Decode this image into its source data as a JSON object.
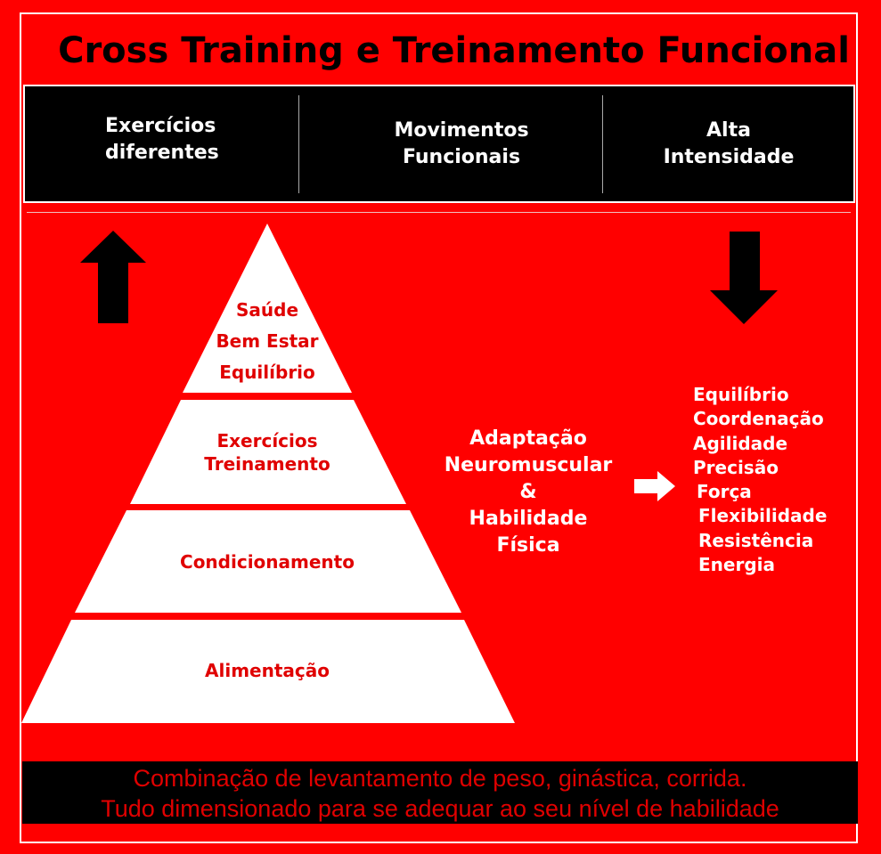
{
  "title": "Cross Training e Treinamento Funcional",
  "header": {
    "items": [
      {
        "line1": "Exercícios",
        "line2": "diferentes"
      },
      {
        "line1": "Movimentos",
        "line2": "Funcionais"
      },
      {
        "line1": "Alta",
        "line2": "Intensidade"
      }
    ]
  },
  "pyramid": {
    "top": [
      "Saúde",
      "Bem Estar",
      "Equilíbrio"
    ],
    "level2": [
      "Exercícios",
      "Treinamento"
    ],
    "level3": "Condicionamento",
    "base": "Alimentação"
  },
  "middle": {
    "lines": [
      "Adaptação",
      "Neuromuscular",
      "&",
      "Habilidade",
      "Física"
    ]
  },
  "capacities": [
    "Equilíbrio",
    "Coordenação",
    "Agilidade",
    "Precisão",
    "Força",
    "Flexibilidade",
    "Resistência",
    "Energia"
  ],
  "footer": {
    "line1": "Combinação de levantamento de peso, ginástica, corrida.",
    "line2": "Tudo dimensionado para se adequar ao seu nível de habilidade"
  },
  "colors": {
    "background": "#ff0000",
    "pyramid_text": "#e00000",
    "panel": "#000000"
  }
}
